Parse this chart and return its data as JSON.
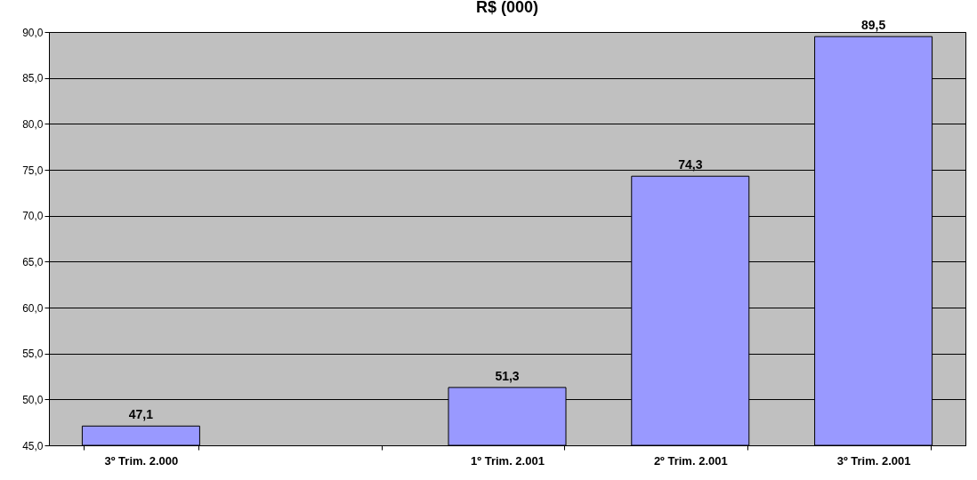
{
  "chart_data": {
    "type": "bar",
    "title": "R$ (000)",
    "categories": [
      "3º Trim. 2.000",
      null,
      "1º Trim. 2.001",
      "2º Trim. 2.001",
      "3º Trim. 2.001"
    ],
    "values": [
      47.1,
      null,
      51.3,
      74.3,
      89.5
    ],
    "value_labels": [
      "47,1",
      null,
      "51,3",
      "74,3",
      "89,5"
    ],
    "color": "#9999ff",
    "ylim": [
      45,
      90
    ],
    "yticks": [
      {
        "value": 45,
        "label": "45,0"
      },
      {
        "value": 50,
        "label": "50,0"
      },
      {
        "value": 55,
        "label": "55,0"
      },
      {
        "value": 60,
        "label": "60,0"
      },
      {
        "value": 65,
        "label": "65,0"
      },
      {
        "value": 70,
        "label": "70,0"
      },
      {
        "value": 75,
        "label": "75,0"
      },
      {
        "value": 80,
        "label": "80,0"
      },
      {
        "value": 85,
        "label": "85,0"
      },
      {
        "value": 90,
        "label": "90,0"
      }
    ],
    "grid": "y"
  }
}
